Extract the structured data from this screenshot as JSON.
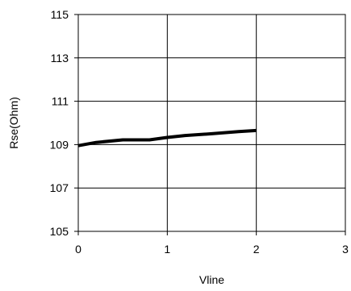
{
  "chart_data": {
    "type": "line",
    "title": "",
    "xlabel": "Vline",
    "ylabel": "Rse(Ohm)",
    "xlim": [
      0,
      3
    ],
    "ylim": [
      105,
      115
    ],
    "x_ticks": [
      "0",
      "1",
      "2",
      "3"
    ],
    "y_ticks": [
      "105",
      "107",
      "109",
      "111",
      "113",
      "115"
    ],
    "grid": true,
    "series": [
      {
        "x": [
          0.0,
          0.2,
          0.5,
          0.8,
          1.0,
          1.2,
          1.5,
          1.8,
          2.0
        ],
        "y": [
          108.95,
          109.1,
          109.22,
          109.22,
          109.33,
          109.42,
          109.5,
          109.6,
          109.65
        ],
        "color": "#000000"
      }
    ]
  }
}
